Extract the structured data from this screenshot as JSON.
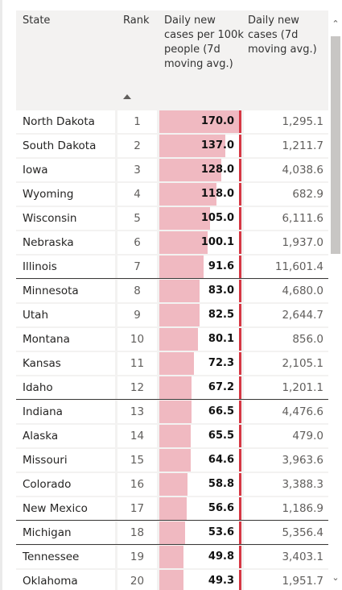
{
  "table": {
    "columns": {
      "state": "State",
      "rank": "Rank",
      "per100k": "Daily new cases per 100k people (7d moving avg.)",
      "cases": "Daily new cases (7d moving avg.)"
    },
    "sort": {
      "column": "rank",
      "direction": "ascending",
      "icon": "sort-ascending-icon"
    },
    "bar_max": 170.0,
    "colors": {
      "bar_fill": "#f0b9c1",
      "bar_edge": "#d63744",
      "header_bg": "#f3f2f1"
    },
    "rows": [
      {
        "state": "North Dakota",
        "rank": "1",
        "per100k": "170.0",
        "per100k_value": 170.0,
        "cases": "1,295.1"
      },
      {
        "state": "South Dakota",
        "rank": "2",
        "per100k": "137.0",
        "per100k_value": 137.0,
        "cases": "1,211.7"
      },
      {
        "state": "Iowa",
        "rank": "3",
        "per100k": "128.0",
        "per100k_value": 128.0,
        "cases": "4,038.6"
      },
      {
        "state": "Wyoming",
        "rank": "4",
        "per100k": "118.0",
        "per100k_value": 118.0,
        "cases": "682.9"
      },
      {
        "state": "Wisconsin",
        "rank": "5",
        "per100k": "105.0",
        "per100k_value": 105.0,
        "cases": "6,111.6"
      },
      {
        "state": "Nebraska",
        "rank": "6",
        "per100k": "100.1",
        "per100k_value": 100.1,
        "cases": "1,937.0"
      },
      {
        "state": "Illinois",
        "rank": "7",
        "per100k": "91.6",
        "per100k_value": 91.6,
        "cases": "11,601.4"
      },
      {
        "state": "Minnesota",
        "rank": "8",
        "per100k": "83.0",
        "per100k_value": 83.0,
        "cases": "4,680.0",
        "separator_above": true
      },
      {
        "state": "Utah",
        "rank": "9",
        "per100k": "82.5",
        "per100k_value": 82.5,
        "cases": "2,644.7"
      },
      {
        "state": "Montana",
        "rank": "10",
        "per100k": "80.1",
        "per100k_value": 80.1,
        "cases": "856.0"
      },
      {
        "state": "Kansas",
        "rank": "11",
        "per100k": "72.3",
        "per100k_value": 72.3,
        "cases": "2,105.1"
      },
      {
        "state": "Idaho",
        "rank": "12",
        "per100k": "67.2",
        "per100k_value": 67.2,
        "cases": "1,201.1"
      },
      {
        "state": "Indiana",
        "rank": "13",
        "per100k": "66.5",
        "per100k_value": 66.5,
        "cases": "4,476.6",
        "separator_above": true
      },
      {
        "state": "Alaska",
        "rank": "14",
        "per100k": "65.5",
        "per100k_value": 65.5,
        "cases": "479.0"
      },
      {
        "state": "Missouri",
        "rank": "15",
        "per100k": "64.6",
        "per100k_value": 64.6,
        "cases": "3,963.6"
      },
      {
        "state": "Colorado",
        "rank": "16",
        "per100k": "58.8",
        "per100k_value": 58.8,
        "cases": "3,388.3"
      },
      {
        "state": "New Mexico",
        "rank": "17",
        "per100k": "56.6",
        "per100k_value": 56.6,
        "cases": "1,186.9"
      },
      {
        "state": "Michigan",
        "rank": "18",
        "per100k": "53.6",
        "per100k_value": 53.6,
        "cases": "5,356.4",
        "separator_above": true
      },
      {
        "state": "Tennessee",
        "rank": "19",
        "per100k": "49.8",
        "per100k_value": 49.8,
        "cases": "3,403.1",
        "separator_above": true
      },
      {
        "state": "Oklahoma",
        "rank": "20",
        "per100k": "49.3",
        "per100k_value": 49.3,
        "cases": "1,951.7"
      }
    ]
  },
  "scrollbar": {
    "up_icon": "chevron-up-icon",
    "down_icon": "chevron-down-icon"
  }
}
